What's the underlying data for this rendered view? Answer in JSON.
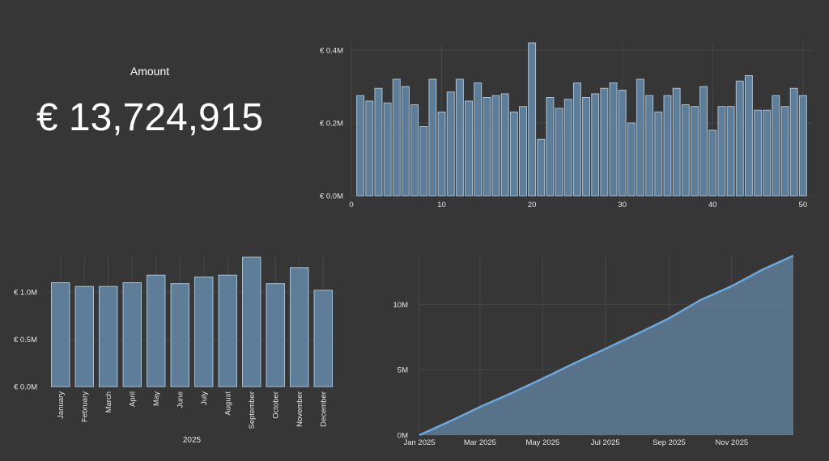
{
  "kpi": {
    "label": "Amount",
    "value": "€ 13,724,915"
  },
  "chart_data": [
    {
      "id": "weekly",
      "type": "bar",
      "x": [
        1,
        2,
        3,
        4,
        5,
        6,
        7,
        8,
        9,
        10,
        11,
        12,
        13,
        14,
        15,
        16,
        17,
        18,
        19,
        20,
        21,
        22,
        23,
        24,
        25,
        26,
        27,
        28,
        29,
        30,
        31,
        32,
        33,
        34,
        35,
        36,
        37,
        38,
        39,
        40,
        41,
        42,
        43,
        44,
        45,
        46,
        47,
        48,
        49,
        50
      ],
      "values": [
        0.275,
        0.26,
        0.295,
        0.255,
        0.32,
        0.3,
        0.25,
        0.19,
        0.32,
        0.23,
        0.285,
        0.32,
        0.26,
        0.31,
        0.27,
        0.275,
        0.28,
        0.23,
        0.245,
        0.42,
        0.155,
        0.27,
        0.24,
        0.265,
        0.31,
        0.27,
        0.28,
        0.295,
        0.31,
        0.29,
        0.2,
        0.32,
        0.275,
        0.23,
        0.275,
        0.295,
        0.25,
        0.245,
        0.3,
        0.18,
        0.245,
        0.245,
        0.315,
        0.33,
        0.235,
        0.235,
        0.275,
        0.245,
        0.295,
        0.275
      ],
      "unit": "M",
      "ylim": [
        0,
        0.42
      ],
      "xlim": [
        0,
        51
      ],
      "y_ticks": [
        0,
        0.2,
        0.4
      ],
      "y_tick_labels": [
        "€ 0.0M",
        "€ 0.2M",
        "€ 0.4M"
      ],
      "x_ticks": [
        0,
        10,
        20,
        30,
        40,
        50
      ],
      "x_tick_labels": [
        "0",
        "10",
        "20",
        "30",
        "40",
        "50"
      ],
      "colors": {
        "bar": "#5e7d99",
        "edge": "#a7c2d8"
      }
    },
    {
      "id": "monthly",
      "type": "bar",
      "categories": [
        "January",
        "February",
        "March",
        "April",
        "May",
        "June",
        "July",
        "August",
        "September",
        "October",
        "November",
        "December"
      ],
      "values": [
        1.1,
        1.06,
        1.06,
        1.1,
        1.18,
        1.09,
        1.16,
        1.18,
        1.37,
        1.09,
        1.26,
        1.02
      ],
      "unit": "M",
      "xlabel": "2025",
      "ylim": [
        0,
        1.37
      ],
      "y_ticks": [
        0,
        0.5,
        1.0
      ],
      "y_tick_labels": [
        "€ 0.0M",
        "€ 0.5M",
        "€ 1.0M"
      ],
      "colors": {
        "bar": "#5e7d99",
        "edge": "#a7c2d8"
      }
    },
    {
      "id": "cumulative",
      "type": "area",
      "x": [
        "2025-01-01",
        "2025-02-01",
        "2025-03-01",
        "2025-04-01",
        "2025-05-01",
        "2025-06-01",
        "2025-07-01",
        "2025-08-01",
        "2025-09-01",
        "2025-10-01",
        "2025-11-01",
        "2025-12-01",
        "2025-12-31"
      ],
      "values": [
        0,
        1.1,
        2.16,
        3.22,
        4.32,
        5.5,
        6.59,
        7.75,
        8.93,
        10.3,
        11.39,
        12.65,
        13.72
      ],
      "unit": "M",
      "ylim": [
        0,
        13.85
      ],
      "y_ticks": [
        0,
        5,
        10
      ],
      "y_tick_labels": [
        "0M",
        "5M",
        "10M"
      ],
      "x_tick_dates": [
        "2025-01-01",
        "2025-03-01",
        "2025-05-01",
        "2025-07-01",
        "2025-09-01",
        "2025-11-01"
      ],
      "x_tick_labels": [
        "Jan 2025",
        "Mar 2025",
        "May 2025",
        "Jul 2025",
        "Sep 2025",
        "Nov 2025"
      ],
      "colors": {
        "line": "#6aa8df",
        "fill": "#5e7d99"
      }
    }
  ]
}
